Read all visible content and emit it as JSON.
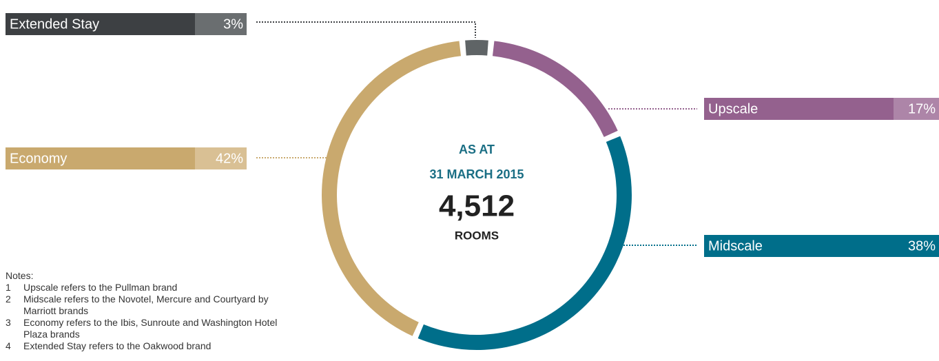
{
  "chart_data": {
    "type": "donut",
    "categories": [
      "Extended Stay",
      "Upscale",
      "Midscale",
      "Economy"
    ],
    "values": [
      3,
      17,
      38,
      42
    ],
    "value_labels": [
      "3%",
      "17%",
      "38%",
      "42%"
    ],
    "colors": [
      "#5f6466",
      "#94618e",
      "#006e8a",
      "#c9a96e"
    ],
    "center_text": [
      "AS AT",
      "31 MARCH 2015",
      "4,512",
      "ROOMS"
    ]
  },
  "notes": {
    "title": "Notes:",
    "items": [
      {
        "number": 1,
        "text": "Upscale refers to the Pullman brand"
      },
      {
        "number": 2,
        "text": "Midscale refers to the Novotel, Mercure and Courtyard by Marriott brands"
      },
      {
        "number": 3,
        "text": "Economy refers to the Ibis, Sunroute and Washington Hotel Plaza brands"
      },
      {
        "number": 4,
        "text": "Extended Stay refers to the Oakwood brand"
      }
    ]
  }
}
